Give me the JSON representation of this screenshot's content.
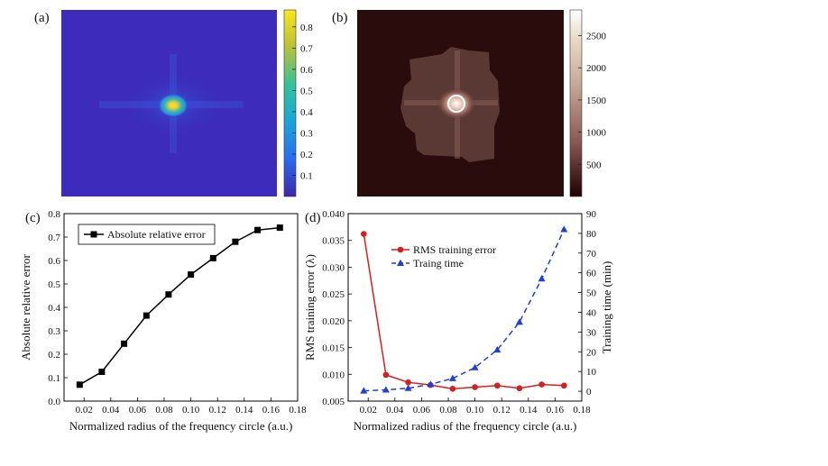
{
  "panels": {
    "a": {
      "label": "(a)"
    },
    "b": {
      "label": "(b)"
    },
    "c": {
      "label": "(c)"
    },
    "d": {
      "label": "(d)"
    }
  },
  "chart_data": [
    {
      "panel": "(a)",
      "type": "heatmap",
      "colormap": "parula",
      "colorbar": {
        "range": [
          0,
          0.88
        ],
        "ticks": [
          0.1,
          0.2,
          0.3,
          0.4,
          0.5,
          0.6,
          0.7,
          0.8
        ]
      },
      "colors": {
        "background": "#3d2bbb",
        "peak": "#f5e020"
      }
    },
    {
      "panel": "(b)",
      "type": "heatmap",
      "colormap": "pink",
      "colorbar": {
        "range": [
          0,
          2900
        ],
        "ticks": [
          500,
          1000,
          1500,
          2000,
          2500
        ]
      },
      "colors": {
        "background": "#2a0c0c",
        "peak": "#ffffff",
        "circle": "#ffffff"
      }
    },
    {
      "panel": "(c)",
      "type": "line",
      "xlabel": "Normalized radius of the frequency circle (a.u.)",
      "ylabel": "Absolute relative error",
      "xlim": [
        0.005,
        0.18
      ],
      "ylim": [
        0,
        0.8
      ],
      "xticks": [
        0.02,
        0.04,
        0.06,
        0.08,
        0.1,
        0.12,
        0.14,
        0.16,
        0.18
      ],
      "xtick_labels": [
        "0.02",
        "0.04",
        "0.06",
        "0.08",
        "0.10",
        "0.12",
        "0.14",
        "0.16",
        "0.18"
      ],
      "yticks": [
        0,
        0.1,
        0.2,
        0.3,
        0.4,
        0.5,
        0.6,
        0.7,
        0.8
      ],
      "ytick_labels": [
        "0.0",
        "0.1",
        "0.2",
        "0.3",
        "0.4",
        "0.5",
        "0.6",
        "0.7",
        "0.8"
      ],
      "legend_position": "top-left",
      "series": [
        {
          "name": "Absolute relative error",
          "color": "#000000",
          "marker": "square",
          "x": [
            0.0167,
            0.0333,
            0.05,
            0.0667,
            0.0833,
            0.1,
            0.1167,
            0.1333,
            0.15,
            0.1667
          ],
          "y": [
            0.07,
            0.125,
            0.245,
            0.365,
            0.455,
            0.54,
            0.61,
            0.68,
            0.73,
            0.74
          ]
        }
      ]
    },
    {
      "panel": "(d)",
      "type": "line",
      "xlabel": "Normalized radius of the frequency circle (a.u.)",
      "ylabel": "RMS training error (λ)",
      "ylabel_right": "Training time (min)",
      "xlim": [
        0.005,
        0.18
      ],
      "ylim": [
        0.005,
        0.04
      ],
      "ylim_right": [
        -5,
        90
      ],
      "xticks": [
        0.02,
        0.04,
        0.06,
        0.08,
        0.1,
        0.12,
        0.14,
        0.16,
        0.18
      ],
      "xtick_labels": [
        "0.02",
        "0.04",
        "0.06",
        "0.08",
        "0.10",
        "0.12",
        "0.14",
        "0.16",
        "0.18"
      ],
      "yticks": [
        0.005,
        0.01,
        0.015,
        0.02,
        0.025,
        0.03,
        0.035,
        0.04
      ],
      "ytick_labels": [
        "0.005",
        "0.010",
        "0.015",
        "0.020",
        "0.025",
        "0.030",
        "0.035",
        "0.040"
      ],
      "yticks_right": [
        0,
        10,
        20,
        30,
        40,
        50,
        60,
        70,
        80,
        90
      ],
      "ytick_labels_right": [
        "0",
        "10",
        "20",
        "30",
        "40",
        "50",
        "60",
        "70",
        "80",
        "90"
      ],
      "legend_position": "top-center",
      "series": [
        {
          "name": "RMS training error",
          "color": "#d61f1f",
          "marker": "circle",
          "axis": "left",
          "dash": false,
          "x": [
            0.0167,
            0.0333,
            0.05,
            0.0667,
            0.0833,
            0.1,
            0.1167,
            0.1333,
            0.15,
            0.1667
          ],
          "y": [
            0.0362,
            0.0099,
            0.0085,
            0.008,
            0.0073,
            0.0076,
            0.0079,
            0.0074,
            0.0081,
            0.0079
          ]
        },
        {
          "name": "Traing time",
          "color": "#1f3ed6",
          "marker": "triangle",
          "axis": "right",
          "dash": true,
          "x": [
            0.0167,
            0.0333,
            0.05,
            0.0667,
            0.0833,
            0.1,
            0.1167,
            0.1333,
            0.15,
            0.1667
          ],
          "y": [
            0.2,
            0.7,
            1.5,
            3.5,
            6.5,
            12,
            21,
            35,
            57,
            82
          ]
        }
      ]
    }
  ]
}
